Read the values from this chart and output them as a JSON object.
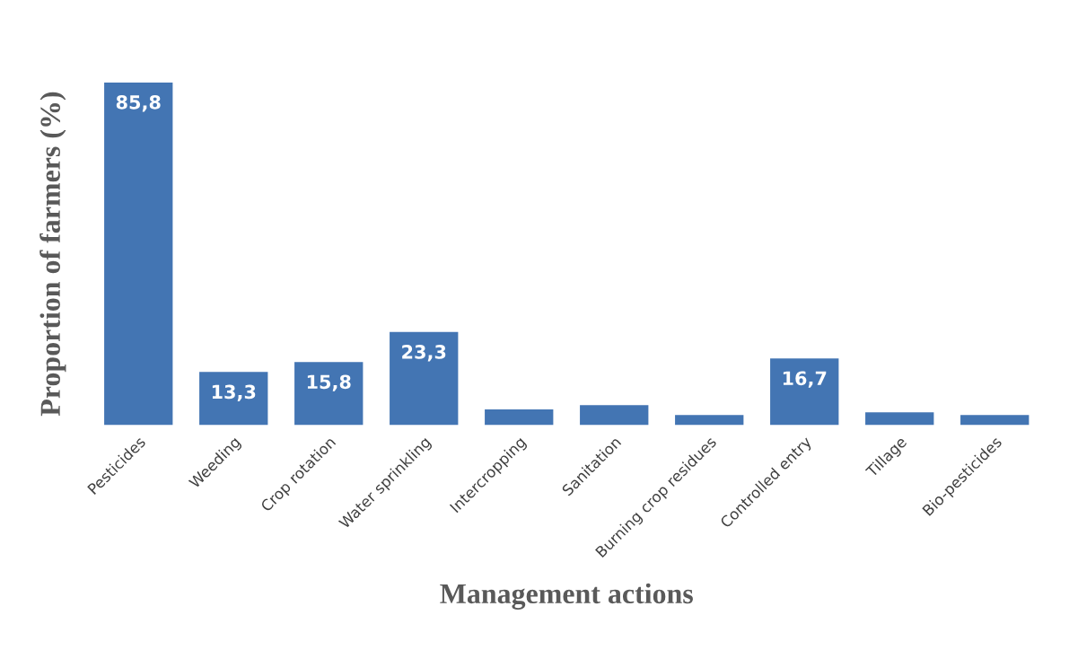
{
  "chart_data": {
    "type": "bar",
    "xlabel": "Management actions",
    "ylabel": "Proportion of farmers (%)",
    "categories": [
      "Pesticides",
      "Weeding",
      "Crop rotation",
      "Water sprinkling",
      "Intercropping",
      "Sanitation",
      "Burning crop residues",
      "Controlled entry",
      "Tillage",
      "Bio-pesticides"
    ],
    "values": [
      85.8,
      13.3,
      15.8,
      23.3,
      3.9,
      5.0,
      2.5,
      16.7,
      3.2,
      2.5
    ],
    "value_labels": [
      "85,8",
      "13,3",
      "15,8",
      "23,3",
      null,
      null,
      null,
      "16,7",
      null,
      null
    ],
    "color": "#4375b3",
    "grid": false
  }
}
